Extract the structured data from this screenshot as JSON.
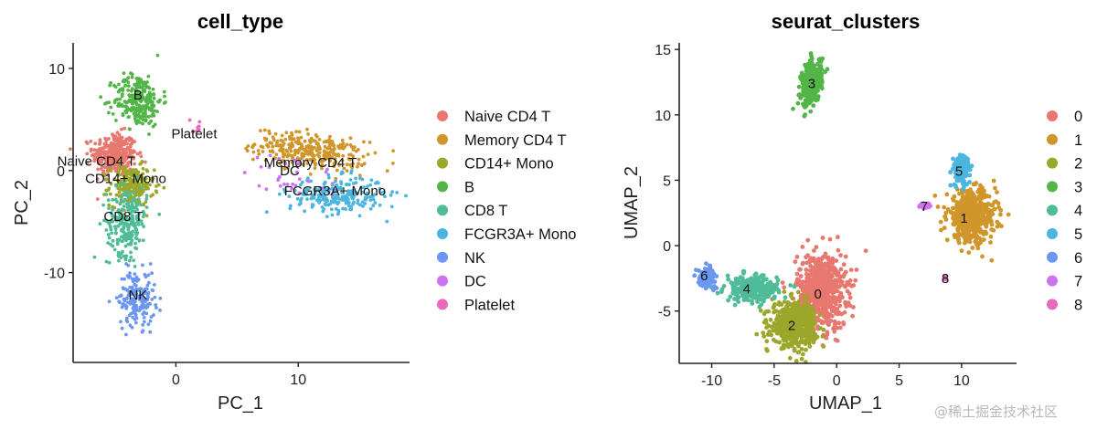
{
  "chart_data": [
    {
      "type": "scatter",
      "title": "cell_type",
      "xlabel": "PC_1",
      "ylabel": "PC_2",
      "xlim": [
        -8.4,
        19.1
      ],
      "ylim": [
        -18.8,
        12.5
      ],
      "xticks": [
        0,
        10
      ],
      "yticks": [
        -10,
        0,
        10
      ],
      "grid": false,
      "legend_position": "right",
      "legend": [
        {
          "name": "Naive CD4 T",
          "color": "#E8786F"
        },
        {
          "name": "Memory CD4 T",
          "color": "#D1962B"
        },
        {
          "name": "CD14+ Mono",
          "color": "#9AA72A"
        },
        {
          "name": "B",
          "color": "#52B547"
        },
        {
          "name": "CD8 T",
          "color": "#4FBC99"
        },
        {
          "name": "FCGR3A+ Mono",
          "color": "#4AB6DF"
        },
        {
          "name": "NK",
          "color": "#6B97F2"
        },
        {
          "name": "DC",
          "color": "#CE73F0"
        },
        {
          "name": "Platelet",
          "color": "#E869BE"
        }
      ],
      "clusters": [
        {
          "name": "Naive CD4 T",
          "center": [
            -5.0,
            1.6
          ],
          "spread": [
            1.2,
            1.4
          ],
          "n": 320,
          "label_at": [
            -6.5,
            0.9
          ]
        },
        {
          "name": "Memory CD4 T",
          "center": [
            11.0,
            1.9
          ],
          "spread": [
            3.0,
            1.1
          ],
          "n": 300,
          "label_at": [
            11.0,
            0.8
          ],
          "tilt": -0.16
        },
        {
          "name": "CD14+ Mono",
          "center": [
            -3.6,
            -1.5
          ],
          "spread": [
            1.2,
            1.3
          ],
          "n": 220,
          "label_at": [
            -4.1,
            -0.8
          ]
        },
        {
          "name": "B",
          "center": [
            -3.1,
            6.9
          ],
          "spread": [
            1.3,
            1.7
          ],
          "n": 260,
          "label_at": [
            -3.1,
            7.4
          ]
        },
        {
          "name": "CD8 T",
          "center": [
            -4.0,
            -5.0
          ],
          "spread": [
            1.1,
            2.2
          ],
          "n": 230,
          "label_at": [
            -4.3,
            -4.5
          ]
        },
        {
          "name": "FCGR3A+ Mono",
          "center": [
            13.2,
            -2.4
          ],
          "spread": [
            2.6,
            1.2
          ],
          "n": 230,
          "label_at": [
            13.0,
            -2.0
          ]
        },
        {
          "name": "NK",
          "center": [
            -3.2,
            -12.5
          ],
          "spread": [
            1.0,
            1.8
          ],
          "n": 180,
          "label_at": [
            -3.1,
            -12.2
          ]
        },
        {
          "name": "DC",
          "center": [
            9.5,
            -0.6
          ],
          "spread": [
            2.5,
            1.6
          ],
          "n": 30,
          "label_at": [
            9.3,
            0.0
          ]
        },
        {
          "name": "Platelet",
          "center": [
            1.5,
            4.4
          ],
          "spread": [
            0.4,
            0.5
          ],
          "n": 8,
          "label_at": [
            1.5,
            3.6
          ]
        }
      ]
    },
    {
      "type": "scatter",
      "title": "seurat_clusters",
      "xlabel": "UMAP_1",
      "ylabel": "UMAP_2",
      "xlim": [
        -12.6,
        14.4
      ],
      "ylim": [
        -9.0,
        15.5
      ],
      "xticks": [
        -10,
        -5,
        0,
        5,
        10
      ],
      "yticks": [
        -5,
        0,
        5,
        10,
        15
      ],
      "grid": false,
      "legend_position": "right",
      "legend": [
        {
          "name": "0",
          "color": "#E8786F"
        },
        {
          "name": "1",
          "color": "#D1962B"
        },
        {
          "name": "2",
          "color": "#9AA72A"
        },
        {
          "name": "3",
          "color": "#52B547"
        },
        {
          "name": "4",
          "color": "#4FBC99"
        },
        {
          "name": "5",
          "color": "#4AB6DF"
        },
        {
          "name": "6",
          "color": "#6B97F2"
        },
        {
          "name": "7",
          "color": "#CE73F0"
        },
        {
          "name": "8",
          "color": "#E869BE"
        }
      ],
      "clusters": [
        {
          "name": "0",
          "center": [
            -1.2,
            -3.5
          ],
          "spread": [
            1.3,
            1.9
          ],
          "n": 700,
          "label_at": [
            -1.5,
            -3.7
          ]
        },
        {
          "name": "1",
          "center": [
            10.8,
            2.2
          ],
          "spread": [
            1.3,
            1.3
          ],
          "n": 500,
          "label_at": [
            10.2,
            2.1
          ]
        },
        {
          "name": "2",
          "center": [
            -3.4,
            -6.0
          ],
          "spread": [
            1.2,
            1.1
          ],
          "n": 500,
          "label_at": [
            -3.6,
            -6.1
          ]
        },
        {
          "name": "3",
          "center": [
            -2.0,
            12.5
          ],
          "spread": [
            0.55,
            1.1
          ],
          "n": 330,
          "label_at": [
            -2.0,
            12.4
          ],
          "tilt": 0.55
        },
        {
          "name": "4",
          "center": [
            -6.8,
            -3.3
          ],
          "spread": [
            1.4,
            0.65
          ],
          "n": 260,
          "label_at": [
            -7.2,
            -3.3
          ]
        },
        {
          "name": "5",
          "center": [
            10.0,
            5.8
          ],
          "spread": [
            0.45,
            0.8
          ],
          "n": 160,
          "label_at": [
            9.8,
            5.7
          ]
        },
        {
          "name": "6",
          "center": [
            -10.4,
            -2.4
          ],
          "spread": [
            0.45,
            0.45
          ],
          "n": 120,
          "label_at": [
            -10.6,
            -2.3
          ]
        },
        {
          "name": "7",
          "center": [
            7.2,
            3.1
          ],
          "spread": [
            0.35,
            0.12
          ],
          "n": 30,
          "label_at": [
            7.0,
            3.0
          ]
        },
        {
          "name": "8",
          "center": [
            8.7,
            -2.5
          ],
          "spread": [
            0.06,
            0.12
          ],
          "n": 8,
          "label_at": [
            8.7,
            -2.5
          ]
        }
      ]
    }
  ],
  "watermark": "@稀土掘金技术社区"
}
